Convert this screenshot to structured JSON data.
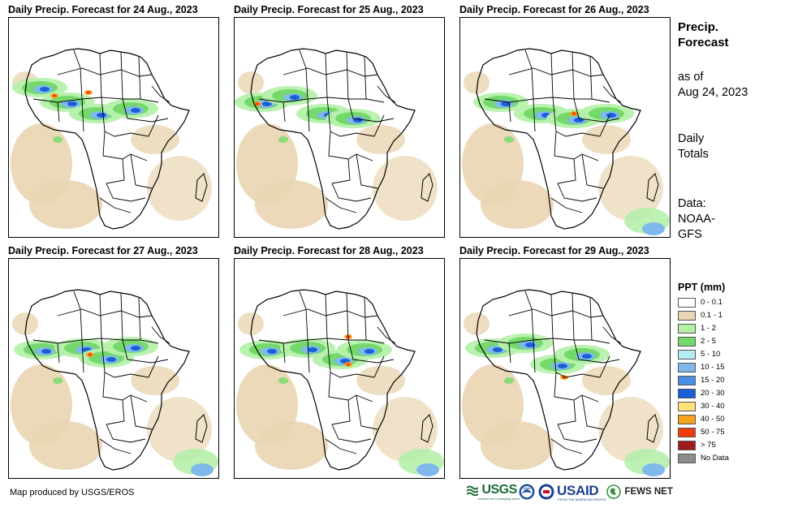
{
  "panels": [
    {
      "title": "Daily Precip. Forecast for 24 Aug., 2023"
    },
    {
      "title": "Daily Precip. Forecast for 25 Aug., 2023"
    },
    {
      "title": "Daily Precip. Forecast for 26 Aug., 2023"
    },
    {
      "title": "Daily Precip. Forecast for 27 Aug., 2023"
    },
    {
      "title": "Daily Precip. Forecast for 28 Aug., 2023"
    },
    {
      "title": "Daily Precip. Forecast for 29 Aug., 2023"
    }
  ],
  "sidebar": {
    "title_line1": "Precip.",
    "title_line2": "Forecast",
    "asof_line1": "as of",
    "asof_line2": "Aug 24, 2023",
    "totals_line1": "Daily",
    "totals_line2": "Totals",
    "data_line1": "Data:",
    "data_line2": "NOAA-",
    "data_line3": "GFS"
  },
  "legend": {
    "title": "PPT (mm)",
    "items": [
      {
        "label": "0 - 0.1",
        "color": "#ffffff"
      },
      {
        "label": "0.1 - 1",
        "color": "#e9d5b2"
      },
      {
        "label": "1 - 2",
        "color": "#b5f0ab"
      },
      {
        "label": "2 - 5",
        "color": "#74d96a"
      },
      {
        "label": "5 - 10",
        "color": "#b4ecf4"
      },
      {
        "label": "10 - 15",
        "color": "#7fb9ec"
      },
      {
        "label": "15 - 20",
        "color": "#4a8fe2"
      },
      {
        "label": "20 - 30",
        "color": "#1a5fd6"
      },
      {
        "label": "30 - 40",
        "color": "#fde27a"
      },
      {
        "label": "40 - 50",
        "color": "#f5a21c"
      },
      {
        "label": "50 - 75",
        "color": "#f03c0c"
      },
      {
        "label": "> 75",
        "color": "#a01c1c"
      },
      {
        "label": "No Data",
        "color": "#8c8c8c"
      }
    ]
  },
  "footer": {
    "credit": "Map produced by USGS/EROS",
    "logos": {
      "usgs": "USGS",
      "usgs_tagline": "science for a changing world",
      "noaa": "NOAA",
      "usaid": "USAID",
      "usaid_tagline": "FROM THE AMERICAN PEOPLE",
      "fews": "FEWS NET"
    }
  }
}
